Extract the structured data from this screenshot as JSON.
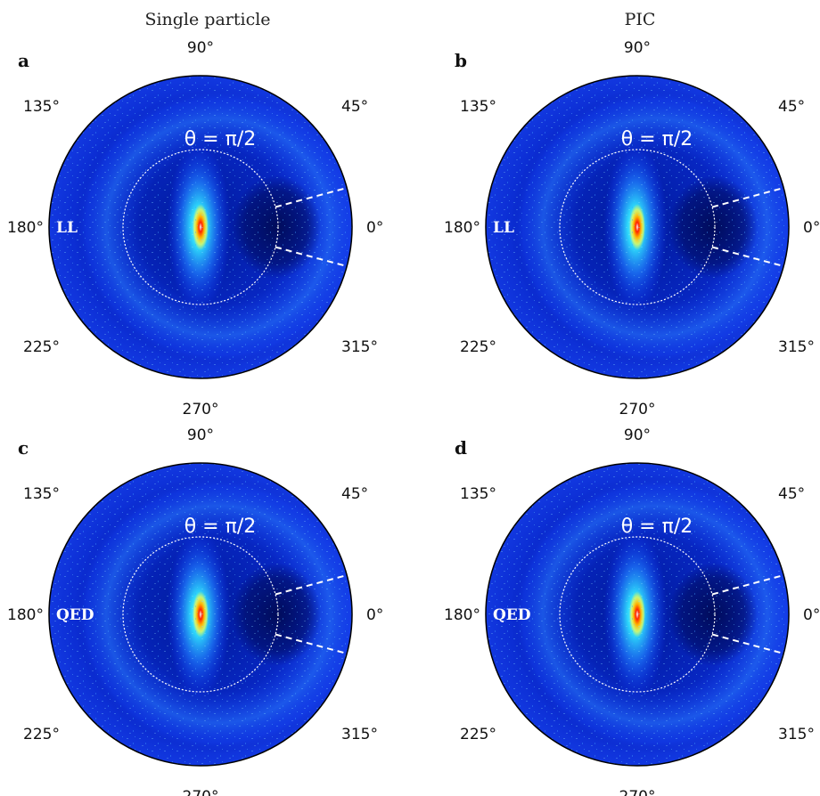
{
  "column_titles": [
    "Single particle",
    "PIC"
  ],
  "angle_labels": [
    "90°",
    "135°",
    "45°",
    "180°",
    "0°",
    "225°",
    "315°",
    "270°"
  ],
  "circle_label": "θ = π/2",
  "colors": {
    "background": "#00127a",
    "ring_glow": "#2a7cff",
    "hot_core": "#b00000",
    "guide_lines": "#ffffff"
  },
  "chart_data": [
    {
      "type": "heatmap",
      "projection": "polar",
      "panel": "a",
      "column": "Single particle",
      "model": "LL",
      "reference_circle_theta": "π/2",
      "dashed_line_angles_deg": [
        15,
        -15
      ],
      "peak_direction_deg": 180,
      "colormap": "jet"
    },
    {
      "type": "heatmap",
      "projection": "polar",
      "panel": "b",
      "column": "PIC",
      "model": "LL",
      "reference_circle_theta": "π/2",
      "dashed_line_angles_deg": [
        15,
        -15
      ],
      "peak_direction_deg": 180,
      "colormap": "jet"
    },
    {
      "type": "heatmap",
      "projection": "polar",
      "panel": "c",
      "column": "Single particle",
      "model": "QED",
      "reference_circle_theta": "π/2",
      "dashed_line_angles_deg": [
        15,
        -15
      ],
      "peak_direction_deg": 180,
      "colormap": "jet"
    },
    {
      "type": "heatmap",
      "projection": "polar",
      "panel": "d",
      "column": "PIC",
      "model": "QED",
      "reference_circle_theta": "π/2",
      "dashed_line_angles_deg": [
        15,
        -15
      ],
      "peak_direction_deg": 180,
      "colormap": "jet"
    }
  ]
}
